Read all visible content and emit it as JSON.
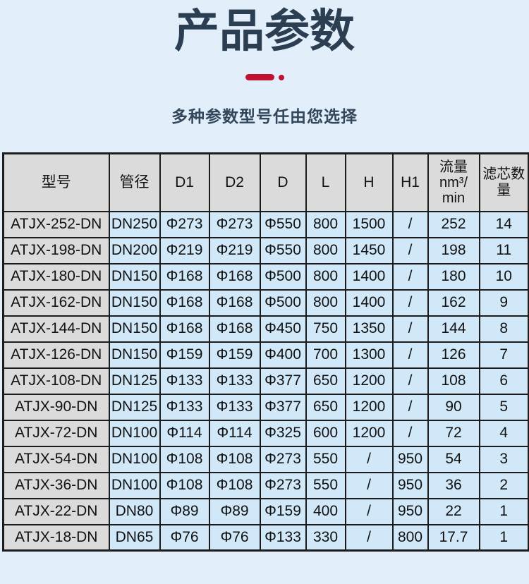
{
  "header": {
    "title": "产品参数",
    "subtitle": "多种参数型号任由您选择"
  },
  "colors": {
    "page_background": "#e2eef9",
    "accent_red": "#c11031",
    "title_navy": "#2c3e52",
    "cell_blue": "#d0e8f8",
    "cell_gray": "#dbdbdb",
    "grid_border": "#1c1c1c"
  },
  "table": {
    "columns": [
      {
        "id": "model",
        "lines": [
          "型号"
        ]
      },
      {
        "id": "dn",
        "lines": [
          "管径"
        ]
      },
      {
        "id": "d1",
        "lines": [
          "D1"
        ]
      },
      {
        "id": "d2",
        "lines": [
          "D2"
        ]
      },
      {
        "id": "d",
        "lines": [
          "D"
        ]
      },
      {
        "id": "l",
        "lines": [
          "L"
        ]
      },
      {
        "id": "h",
        "lines": [
          "H"
        ]
      },
      {
        "id": "h1",
        "lines": [
          "H1"
        ]
      },
      {
        "id": "flow",
        "lines": [
          "流量",
          "nm³/",
          "min"
        ]
      },
      {
        "id": "qty",
        "lines": [
          "滤芯数",
          "量"
        ]
      }
    ],
    "rows": [
      [
        "ATJX-252-DN",
        "DN250",
        "Φ273",
        "Φ273",
        "Φ550",
        "800",
        "1500",
        "/",
        "252",
        "14"
      ],
      [
        "ATJX-198-DN",
        "DN200",
        "Φ219",
        "Φ219",
        "Φ550",
        "800",
        "1450",
        "/",
        "198",
        "11"
      ],
      [
        "ATJX-180-DN",
        "DN150",
        "Φ168",
        "Φ168",
        "Φ500",
        "800",
        "1400",
        "/",
        "180",
        "10"
      ],
      [
        "ATJX-162-DN",
        "DN150",
        "Φ168",
        "Φ168",
        "Φ500",
        "800",
        "1400",
        "/",
        "162",
        "9"
      ],
      [
        "ATJX-144-DN",
        "DN150",
        "Φ168",
        "Φ168",
        "Φ450",
        "750",
        "1350",
        "/",
        "144",
        "8"
      ],
      [
        "ATJX-126-DN",
        "DN150",
        "Φ159",
        "Φ159",
        "Φ400",
        "700",
        "1300",
        "/",
        "126",
        "7"
      ],
      [
        "ATJX-108-DN",
        "DN125",
        "Φ133",
        "Φ133",
        "Φ377",
        "650",
        "1200",
        "/",
        "108",
        "6"
      ],
      [
        "ATJX-90-DN",
        "DN125",
        "Φ133",
        "Φ133",
        "Φ377",
        "650",
        "1200",
        "/",
        "90",
        "5"
      ],
      [
        "ATJX-72-DN",
        "DN100",
        "Φ114",
        "Φ114",
        "Φ325",
        "600",
        "1200",
        "/",
        "72",
        "4"
      ],
      [
        "ATJX-54-DN",
        "DN100",
        "Φ108",
        "Φ108",
        "Φ273",
        "550",
        "/",
        "950",
        "54",
        "3"
      ],
      [
        "ATJX-36-DN",
        "DN100",
        "Φ108",
        "Φ108",
        "Φ273",
        "550",
        "/",
        "950",
        "36",
        "2"
      ],
      [
        "ATJX-22-DN",
        "DN80",
        "Φ89",
        "Φ89",
        "Φ159",
        "400",
        "/",
        "950",
        "22",
        "1"
      ],
      [
        "ATJX-18-DN",
        "DN65",
        "Φ76",
        "Φ76",
        "Φ133",
        "330",
        "/",
        "800",
        "17.7",
        "1"
      ]
    ]
  }
}
